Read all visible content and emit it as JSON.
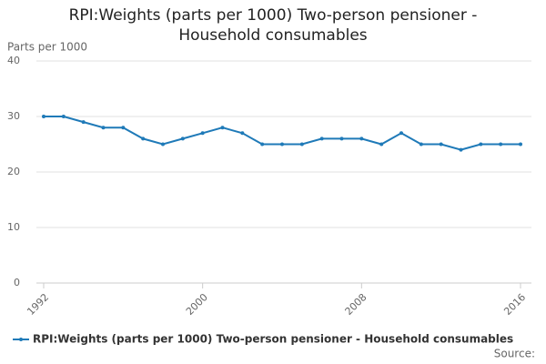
{
  "chart_data": {
    "type": "line",
    "title": "RPI:Weights (parts per 1000) Two-person pensioner - Household consumables",
    "y_label": "Parts per 1000",
    "source": "Source:",
    "x": [
      1992,
      1993,
      1994,
      1995,
      1996,
      1997,
      1998,
      1999,
      2000,
      2001,
      2002,
      2003,
      2004,
      2005,
      2006,
      2007,
      2008,
      2009,
      2010,
      2011,
      2012,
      2013,
      2014,
      2015,
      2016
    ],
    "series": [
      {
        "name": "RPI:Weights (parts per 1000) Two-person pensioner - Household consumables",
        "color": "#1f7ab8",
        "values": [
          30,
          30,
          29,
          28,
          28,
          26,
          25,
          26,
          27,
          28,
          27,
          25,
          25,
          25,
          26,
          26,
          26,
          25,
          27,
          25,
          25,
          24,
          25,
          25,
          25
        ]
      }
    ],
    "xlim": [
      1992,
      2016
    ],
    "xticks": [
      1992,
      2000,
      2008,
      2016
    ],
    "ylim": [
      0,
      40
    ],
    "yticks": [
      0,
      10,
      20,
      30,
      40
    ],
    "grid": true,
    "legend": "bottom"
  }
}
